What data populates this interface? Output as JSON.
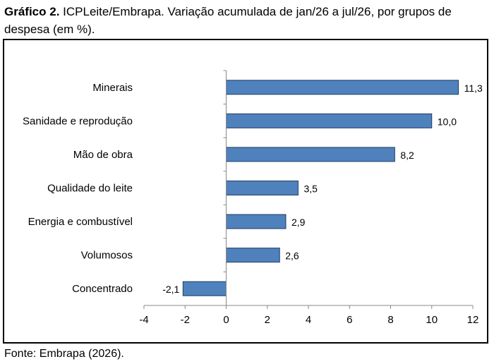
{
  "caption": {
    "label": "Gráfico 2.",
    "text": "ICPLeite/Embrapa. Variação acumulada de jan/26 a jul/26, por grupos de despesa (em %)."
  },
  "source": "Fonte: Embrapa (2026).",
  "chart_data": {
    "type": "bar",
    "orientation": "horizontal",
    "categories": [
      "Minerais",
      "Sanidade e reprodução",
      "Mão de obra",
      "Qualidade do leite",
      "Energia e combustível",
      "Volumosos",
      "Concentrado"
    ],
    "values": [
      11.3,
      10.0,
      8.2,
      3.5,
      2.9,
      2.6,
      -2.1
    ],
    "value_labels": [
      "11,3",
      "10,0",
      "8,2",
      "3,5",
      "2,9",
      "2,6",
      "-2,1"
    ],
    "xlim": [
      -4,
      12
    ],
    "xticks": [
      -4,
      -2,
      0,
      2,
      4,
      6,
      8,
      10,
      12
    ],
    "grid": false,
    "bar_color": "#4f81bd",
    "bar_border": "#1f3d63"
  }
}
